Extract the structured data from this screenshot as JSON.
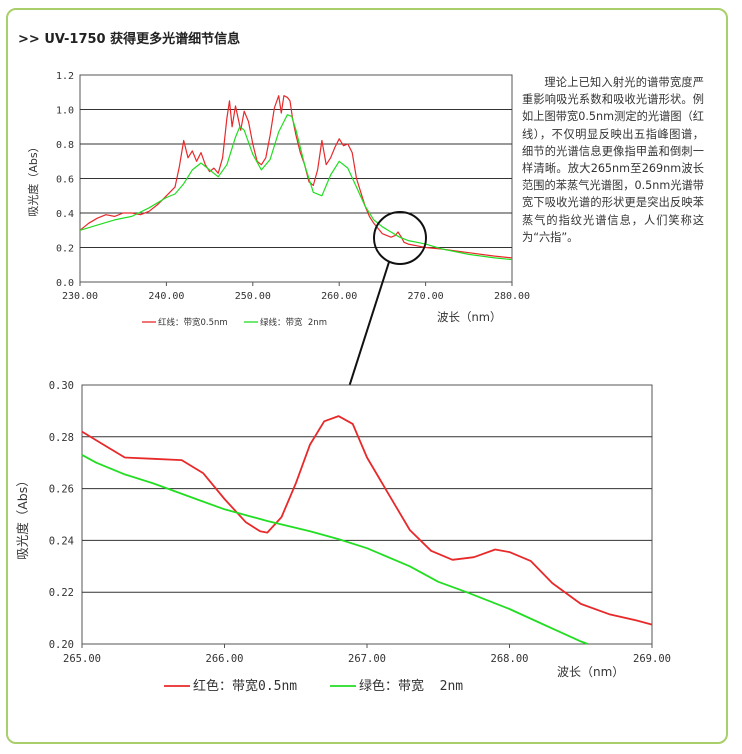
{
  "heading": {
    "prefix": ">>",
    "text": "UV-1750 获得更多光谱细节信息"
  },
  "description": "理论上已知入射光的谱带宽度严重影响吸光系数和吸收光谱形状。例如上图带宽0.5nm测定的光谱图（红线），不仅明显反映出五指峰图谱，细节的光谱信息更像指甲盖和倒刺一样清晰。放大265nm至269nm波长范围的苯蒸气光谱图，0.5nm光谱带宽下吸收光谱的形状更是突出反映苯蒸气的指纹光谱信息，人们笑称这为“六指”。",
  "colors": {
    "red": "#e8292a",
    "green": "#22dd22",
    "border": "#a9cf6a",
    "grid": "#333333"
  },
  "chart_data": [
    {
      "type": "line",
      "xlim": [
        230,
        280
      ],
      "ylim": [
        0,
        1.2
      ],
      "x_ticks": [
        "230.00",
        "240.00",
        "250.00",
        "260.00",
        "270.00",
        "280.00"
      ],
      "y_ticks": [
        "0.0",
        "0.2",
        "0.4",
        "0.6",
        "0.8",
        "1.0",
        "1.2"
      ],
      "xlabel": "波长（nm）",
      "ylabel": "吸光度（Abs）",
      "legend": [
        "红线：带宽0.5nm",
        "绿线：带宽  2nm"
      ],
      "legend_position": "bottom-center",
      "grid": true,
      "series": [
        {
          "name": "红线：带宽0.5nm",
          "color": "red",
          "x": [
            230,
            231,
            232,
            233,
            234,
            235,
            236,
            237,
            238,
            239,
            240,
            241,
            241.5,
            242,
            242.5,
            243,
            243.5,
            244,
            244.5,
            245,
            245.5,
            246,
            246.5,
            247,
            247.3,
            247.6,
            248,
            248.3,
            248.6,
            249,
            249.5,
            250,
            250.5,
            251,
            251.5,
            252,
            252.5,
            253,
            253.3,
            253.6,
            254,
            254.3,
            254.6,
            255,
            255.5,
            256,
            256.5,
            257,
            257.5,
            258,
            258.5,
            259,
            259.5,
            260,
            260.5,
            261,
            261.5,
            262,
            262.5,
            263,
            263.5,
            264,
            264.5,
            265,
            265.5,
            266,
            266.5,
            266.8,
            267.2,
            267.5,
            268,
            269,
            270,
            272,
            275,
            278,
            280
          ],
          "y": [
            0.3,
            0.34,
            0.37,
            0.39,
            0.38,
            0.4,
            0.4,
            0.39,
            0.41,
            0.45,
            0.5,
            0.55,
            0.67,
            0.82,
            0.72,
            0.76,
            0.7,
            0.75,
            0.68,
            0.64,
            0.66,
            0.63,
            0.72,
            0.95,
            1.05,
            0.9,
            1.02,
            0.95,
            0.88,
            0.99,
            0.93,
            0.8,
            0.7,
            0.68,
            0.72,
            0.85,
            1.01,
            1.08,
            0.98,
            1.08,
            1.07,
            1.05,
            0.95,
            0.85,
            0.75,
            0.68,
            0.58,
            0.56,
            0.65,
            0.82,
            0.68,
            0.72,
            0.78,
            0.83,
            0.79,
            0.8,
            0.75,
            0.6,
            0.52,
            0.44,
            0.38,
            0.34,
            0.31,
            0.28,
            0.27,
            0.26,
            0.27,
            0.29,
            0.26,
            0.23,
            0.22,
            0.21,
            0.2,
            0.19,
            0.17,
            0.15,
            0.14
          ]
        },
        {
          "name": "绿线：带宽  2nm",
          "color": "green",
          "x": [
            230,
            232,
            234,
            236,
            238,
            240,
            241,
            242,
            243,
            244,
            245,
            246,
            247,
            248,
            248.5,
            249,
            250,
            251,
            252,
            253,
            254,
            254.5,
            255,
            256,
            257,
            258,
            259,
            260,
            261,
            262,
            263,
            264,
            265,
            266,
            267,
            268,
            269,
            270,
            272,
            275,
            278,
            280
          ],
          "y": [
            0.3,
            0.33,
            0.36,
            0.38,
            0.43,
            0.49,
            0.51,
            0.57,
            0.65,
            0.69,
            0.65,
            0.61,
            0.68,
            0.84,
            0.9,
            0.88,
            0.74,
            0.65,
            0.71,
            0.87,
            0.97,
            0.96,
            0.88,
            0.68,
            0.52,
            0.5,
            0.62,
            0.7,
            0.66,
            0.55,
            0.44,
            0.36,
            0.32,
            0.29,
            0.26,
            0.24,
            0.23,
            0.22,
            0.19,
            0.16,
            0.14,
            0.13
          ]
        }
      ]
    },
    {
      "type": "line",
      "xlim": [
        265,
        269
      ],
      "ylim": [
        0.2,
        0.3
      ],
      "x_ticks": [
        "265.00",
        "266.00",
        "267.00",
        "268.00",
        "269.00"
      ],
      "y_ticks": [
        "0.20",
        "0.22",
        "0.24",
        "0.26",
        "0.28",
        "0.30"
      ],
      "xlabel": "波长（nm）",
      "ylabel": "吸光度（Abs）",
      "legend": [
        "红色：带宽0.5nm",
        "绿色：带宽  2nm"
      ],
      "legend_position": "bottom-center",
      "grid": true,
      "series": [
        {
          "name": "红色：带宽0.5nm",
          "color": "red",
          "x": [
            265.0,
            265.15,
            265.3,
            265.5,
            265.7,
            265.85,
            266.0,
            266.15,
            266.25,
            266.3,
            266.4,
            266.5,
            266.6,
            266.7,
            266.8,
            266.9,
            267.0,
            267.15,
            267.3,
            267.45,
            267.6,
            267.75,
            267.9,
            268.0,
            268.15,
            268.3,
            268.5,
            268.7,
            268.9,
            269.0
          ],
          "y": [
            0.282,
            0.277,
            0.272,
            0.2715,
            0.271,
            0.266,
            0.256,
            0.247,
            0.2435,
            0.243,
            0.249,
            0.262,
            0.277,
            0.286,
            0.288,
            0.285,
            0.272,
            0.258,
            0.244,
            0.236,
            0.2325,
            0.2335,
            0.2365,
            0.2355,
            0.232,
            0.2235,
            0.2155,
            0.2115,
            0.209,
            0.2075
          ]
        },
        {
          "name": "绿色：带宽  2nm",
          "color": "green",
          "x": [
            265.0,
            265.1,
            265.3,
            265.5,
            265.8,
            266.0,
            266.3,
            266.6,
            266.8,
            267.0,
            267.3,
            267.5,
            267.7,
            268.0,
            268.2,
            268.4,
            268.5,
            268.55
          ],
          "y": [
            0.273,
            0.27,
            0.2655,
            0.262,
            0.256,
            0.252,
            0.2475,
            0.2435,
            0.2405,
            0.237,
            0.23,
            0.224,
            0.22,
            0.2135,
            0.2085,
            0.2035,
            0.201,
            0.2
          ]
        }
      ]
    }
  ]
}
